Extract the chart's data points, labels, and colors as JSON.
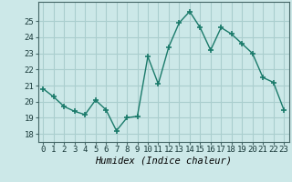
{
  "x": [
    0,
    1,
    2,
    3,
    4,
    5,
    6,
    7,
    8,
    9,
    10,
    11,
    12,
    13,
    14,
    15,
    16,
    17,
    18,
    19,
    20,
    21,
    22,
    23
  ],
  "y": [
    20.8,
    20.3,
    19.7,
    19.4,
    19.2,
    20.1,
    19.5,
    18.2,
    19.0,
    19.1,
    22.8,
    21.1,
    23.4,
    24.9,
    25.6,
    24.6,
    23.2,
    24.6,
    24.2,
    23.6,
    23.0,
    21.5,
    21.2,
    19.5
  ],
  "line_color": "#1a7a6a",
  "marker": "+",
  "marker_size": 5,
  "marker_lw": 1.2,
  "bg_color": "#cce8e8",
  "grid_color": "#aacece",
  "xlabel": "Humidex (Indice chaleur)",
  "ylim": [
    17.5,
    26.2
  ],
  "xlim": [
    -0.5,
    23.5
  ],
  "yticks": [
    18,
    19,
    20,
    21,
    22,
    23,
    24,
    25
  ],
  "xticks": [
    0,
    1,
    2,
    3,
    4,
    5,
    6,
    7,
    8,
    9,
    10,
    11,
    12,
    13,
    14,
    15,
    16,
    17,
    18,
    19,
    20,
    21,
    22,
    23
  ],
  "tick_fontsize": 6.5,
  "label_fontsize": 7.5
}
